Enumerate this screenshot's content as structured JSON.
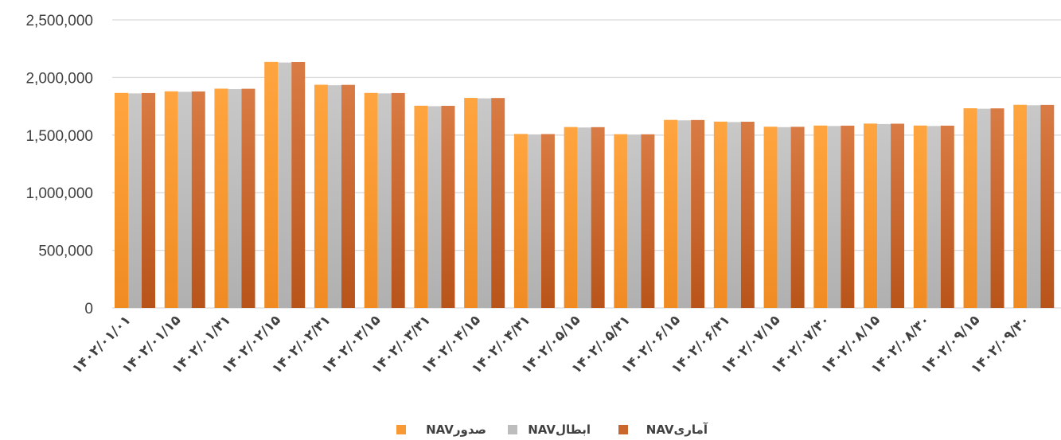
{
  "chart_data": {
    "type": "bar",
    "title": "",
    "xlabel": "",
    "ylabel": "",
    "ylim": [
      0,
      2500000
    ],
    "yticks": [
      0,
      500000,
      1000000,
      1500000,
      2000000,
      2500000
    ],
    "ytick_labels": [
      "0",
      "500,000",
      "1,000,000",
      "1,500,000",
      "2,000,000",
      "2,500,000"
    ],
    "grid": "horizontal",
    "legend_position": "bottom",
    "categories": [
      "۱۴۰۲/۰۱/۰۱",
      "۱۴۰۲/۰۱/۱۵",
      "۱۴۰۲/۰۱/۳۱",
      "۱۴۰۲/۰۲/۱۵",
      "۱۴۰۲/۰۲/۳۱",
      "۱۴۰۲/۰۳/۱۵",
      "۱۴۰۲/۰۳/۳۱",
      "۱۴۰۲/۰۴/۱۵",
      "۱۴۰۲/۰۴/۳۱",
      "۱۴۰۲/۰۵/۱۵",
      "۱۴۰۲/۰۵/۳۱",
      "۱۴۰۲/۰۶/۱۵",
      "۱۴۰۲/۰۶/۳۱",
      "۱۴۰۲/۰۷/۱۵",
      "۱۴۰۲/۰۷/۳۰",
      "۱۴۰۲/۰۸/۱۵",
      "۱۴۰۲/۰۸/۳۰",
      "۱۴۰۲/۰۹/۱۵",
      "۱۴۰۲/۰۹/۳۰"
    ],
    "series": [
      {
        "name": "NAVصدور",
        "color": "#f79a36",
        "values": [
          1866000,
          1880000,
          1903000,
          2135000,
          1937000,
          1866000,
          1755000,
          1823000,
          1510000,
          1570000,
          1508000,
          1632000,
          1617000,
          1573000,
          1583000,
          1600000,
          1583000,
          1733000,
          1763000
        ]
      },
      {
        "name": "NAVابطال",
        "color": "#bdbdbd",
        "values": [
          1862000,
          1876000,
          1899000,
          2130000,
          1933000,
          1862000,
          1751000,
          1819000,
          1506000,
          1566000,
          1504000,
          1628000,
          1613000,
          1569000,
          1579000,
          1596000,
          1579000,
          1729000,
          1759000
        ]
      },
      {
        "name": "NAVآماری",
        "color": "#c9662c",
        "values": [
          1865000,
          1879000,
          1902000,
          2134000,
          1936000,
          1865000,
          1754000,
          1822000,
          1509000,
          1569000,
          1507000,
          1631000,
          1616000,
          1572000,
          1582000,
          1599000,
          1582000,
          1732000,
          1762000
        ]
      }
    ]
  }
}
